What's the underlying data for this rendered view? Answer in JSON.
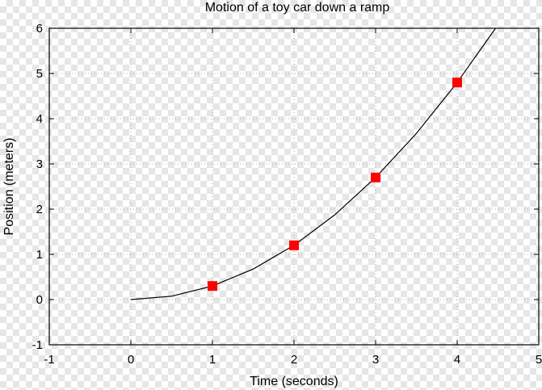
{
  "chart_data": {
    "type": "scatter",
    "title": "Motion of a toy car down a ramp",
    "xlabel": "Time (seconds)",
    "ylabel": "Position (meters)",
    "xlim": [
      -1,
      5
    ],
    "ylim": [
      -1,
      6
    ],
    "x_ticks": [
      "-1",
      "0",
      "1",
      "2",
      "3",
      "4",
      "5"
    ],
    "y_ticks": [
      "-1",
      "0",
      "1",
      "2",
      "3",
      "4",
      "5",
      "6"
    ],
    "grid": true,
    "legend": "none",
    "series": [
      {
        "type": "scatter",
        "marker": "square",
        "color": "#ff0000",
        "x": [
          1,
          2,
          3,
          4
        ],
        "y": [
          0.3,
          1.2,
          2.7,
          4.8
        ]
      },
      {
        "type": "line",
        "color": "#000000",
        "x": [
          0,
          0.5,
          1,
          1.5,
          2,
          2.5,
          3,
          3.5,
          4,
          4.47
        ],
        "y": [
          0,
          0.075,
          0.3,
          0.675,
          1.2,
          1.875,
          2.7,
          3.675,
          4.8,
          6.0
        ]
      }
    ]
  }
}
